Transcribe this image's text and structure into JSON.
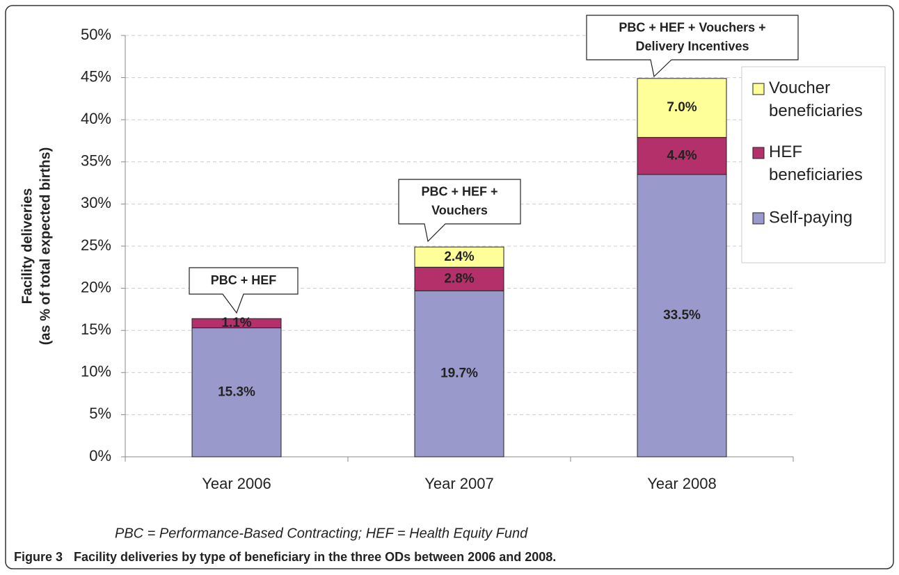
{
  "chart_data": {
    "type": "bar",
    "stacked": true,
    "ylabel": [
      "Facility deliveries",
      "(as % of total expected births)"
    ],
    "categories": [
      "Year 2006",
      "Year 2007",
      "Year 2008"
    ],
    "series": [
      {
        "name": "Self-paying",
        "color": "#9999cc",
        "values": [
          15.3,
          19.7,
          33.5
        ],
        "value_labels": [
          "15.3%",
          "19.7%",
          "33.5%"
        ]
      },
      {
        "name": "HEF beneficiaries",
        "color": "#b3306a",
        "values": [
          1.1,
          2.8,
          4.4
        ],
        "value_labels": [
          "1.1%",
          "2.8%",
          "4.4%"
        ]
      },
      {
        "name": "Voucher beneficiaries",
        "color": "#ffff99",
        "values": [
          null,
          2.4,
          7.0
        ],
        "value_labels": [
          null,
          "2.4%",
          "7.0%"
        ]
      }
    ],
    "ylim": [
      0,
      50
    ],
    "yticks": [
      {
        "value": 0,
        "label": "0%"
      },
      {
        "value": 5,
        "label": "5%"
      },
      {
        "value": 10,
        "label": "10%"
      },
      {
        "value": 15,
        "label": "15%"
      },
      {
        "value": 20,
        "label": "20%"
      },
      {
        "value": 25,
        "label": "25%"
      },
      {
        "value": 30,
        "label": "30%"
      },
      {
        "value": 35,
        "label": "35%"
      },
      {
        "value": 40,
        "label": "40%"
      },
      {
        "value": 45,
        "label": "45%"
      },
      {
        "value": 50,
        "label": "50%"
      }
    ],
    "grid": true,
    "legend": "right",
    "annotations": [
      {
        "lines": [
          "PBC + HEF"
        ]
      },
      {
        "lines": [
          "PBC + HEF +",
          "Vouchers"
        ]
      },
      {
        "lines": [
          "PBC + HEF + Vouchers +",
          "Delivery Incentives"
        ]
      }
    ],
    "note": "PBC = Performance-Based Contracting; HEF = Health Equity Fund",
    "caption_label": "Figure 3",
    "caption": "Facility deliveries by type of beneficiary in the three ODs between 2006 and 2008."
  }
}
